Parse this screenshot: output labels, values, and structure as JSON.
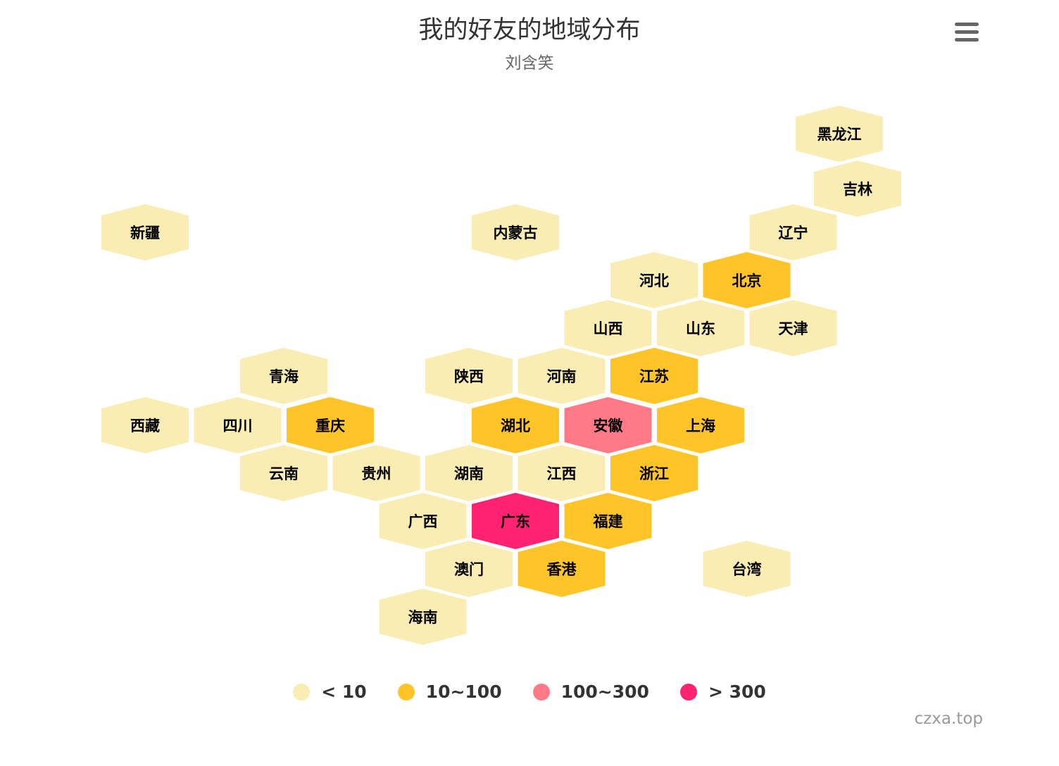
{
  "chart_data": {
    "type": "tilemap",
    "title": "我的好友的地域分布",
    "subtitle": "刘含笑",
    "credits": "czxa.top",
    "color_classes": [
      {
        "label": "< 10",
        "color": "#F9EDB3"
      },
      {
        "label": "10~100",
        "color": "#FFC428"
      },
      {
        "label": "100~300",
        "color": "#FF7987"
      },
      {
        "label": "> 300",
        "color": "#FF2371"
      }
    ],
    "tiles": [
      {
        "name": "黑龙江",
        "class": 0,
        "row": 0,
        "col": 8
      },
      {
        "name": "吉林",
        "class": 0,
        "row": 1,
        "col": 8
      },
      {
        "name": "新疆",
        "class": 0,
        "row": 2,
        "col": 0
      },
      {
        "name": "内蒙古",
        "class": 0,
        "row": 2,
        "col": 4
      },
      {
        "name": "辽宁",
        "class": 0,
        "row": 2,
        "col": 7
      },
      {
        "name": "河北",
        "class": 0,
        "row": 3,
        "col": 5
      },
      {
        "name": "北京",
        "class": 1,
        "row": 3,
        "col": 6
      },
      {
        "name": "山西",
        "class": 0,
        "row": 4,
        "col": 5
      },
      {
        "name": "山东",
        "class": 0,
        "row": 4,
        "col": 6
      },
      {
        "name": "天津",
        "class": 0,
        "row": 4,
        "col": 7
      },
      {
        "name": "青海",
        "class": 0,
        "row": 5,
        "col": 1
      },
      {
        "name": "陕西",
        "class": 0,
        "row": 5,
        "col": 3
      },
      {
        "name": "河南",
        "class": 0,
        "row": 5,
        "col": 4
      },
      {
        "name": "江苏",
        "class": 1,
        "row": 5,
        "col": 5
      },
      {
        "name": "西藏",
        "class": 0,
        "row": 6,
        "col": 0
      },
      {
        "name": "四川",
        "class": 0,
        "row": 6,
        "col": 1
      },
      {
        "name": "重庆",
        "class": 1,
        "row": 6,
        "col": 2
      },
      {
        "name": "湖北",
        "class": 1,
        "row": 6,
        "col": 4
      },
      {
        "name": "安徽",
        "class": 2,
        "row": 6,
        "col": 5
      },
      {
        "name": "上海",
        "class": 1,
        "row": 6,
        "col": 6
      },
      {
        "name": "云南",
        "class": 0,
        "row": 7,
        "col": 1
      },
      {
        "name": "贵州",
        "class": 0,
        "row": 7,
        "col": 2
      },
      {
        "name": "湖南",
        "class": 0,
        "row": 7,
        "col": 3
      },
      {
        "name": "江西",
        "class": 0,
        "row": 7,
        "col": 4
      },
      {
        "name": "浙江",
        "class": 1,
        "row": 7,
        "col": 5
      },
      {
        "name": "广西",
        "class": 0,
        "row": 8,
        "col": 3
      },
      {
        "name": "广东",
        "class": 3,
        "row": 8,
        "col": 4
      },
      {
        "name": "福建",
        "class": 1,
        "row": 8,
        "col": 5
      },
      {
        "name": "澳门",
        "class": 0,
        "row": 9,
        "col": 3
      },
      {
        "name": "香港",
        "class": 1,
        "row": 9,
        "col": 4
      },
      {
        "name": "台湾",
        "class": 0,
        "row": 9,
        "col": 6
      },
      {
        "name": "海南",
        "class": 0,
        "row": 10,
        "col": 3
      }
    ]
  },
  "icons": {
    "menu": "hamburger-menu-icon"
  }
}
